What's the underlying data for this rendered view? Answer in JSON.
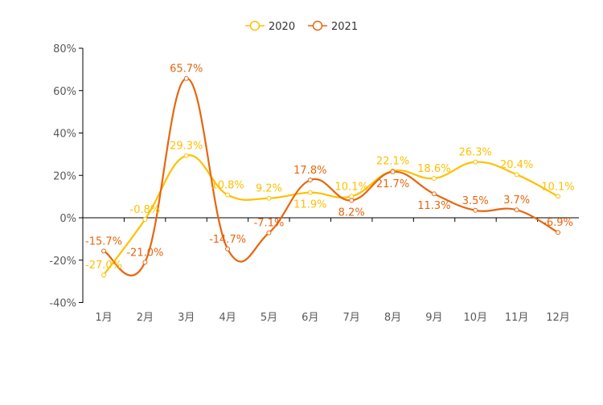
{
  "chart_data": {
    "type": "line",
    "categories": [
      "1月",
      "2月",
      "3月",
      "4月",
      "5月",
      "6月",
      "7月",
      "8月",
      "9月",
      "10月",
      "11月",
      "12月"
    ],
    "series": [
      {
        "name": "2020",
        "color": "#FFC000",
        "values": [
          -27.0,
          -0.8,
          29.3,
          10.8,
          9.2,
          11.9,
          10.1,
          22.1,
          18.6,
          26.3,
          20.4,
          10.1
        ]
      },
      {
        "name": "2021",
        "color": "#E8650E",
        "values": [
          -15.7,
          -21.0,
          65.7,
          -14.7,
          -7.1,
          17.8,
          8.2,
          21.7,
          11.3,
          3.5,
          3.7,
          -6.9
        ]
      }
    ],
    "y_ticks": [
      "-40%",
      "-20%",
      "0%",
      "20%",
      "40%",
      "60%",
      "80%"
    ],
    "ylim": [
      -40,
      80
    ],
    "legend": "top-center",
    "grid": false
  }
}
